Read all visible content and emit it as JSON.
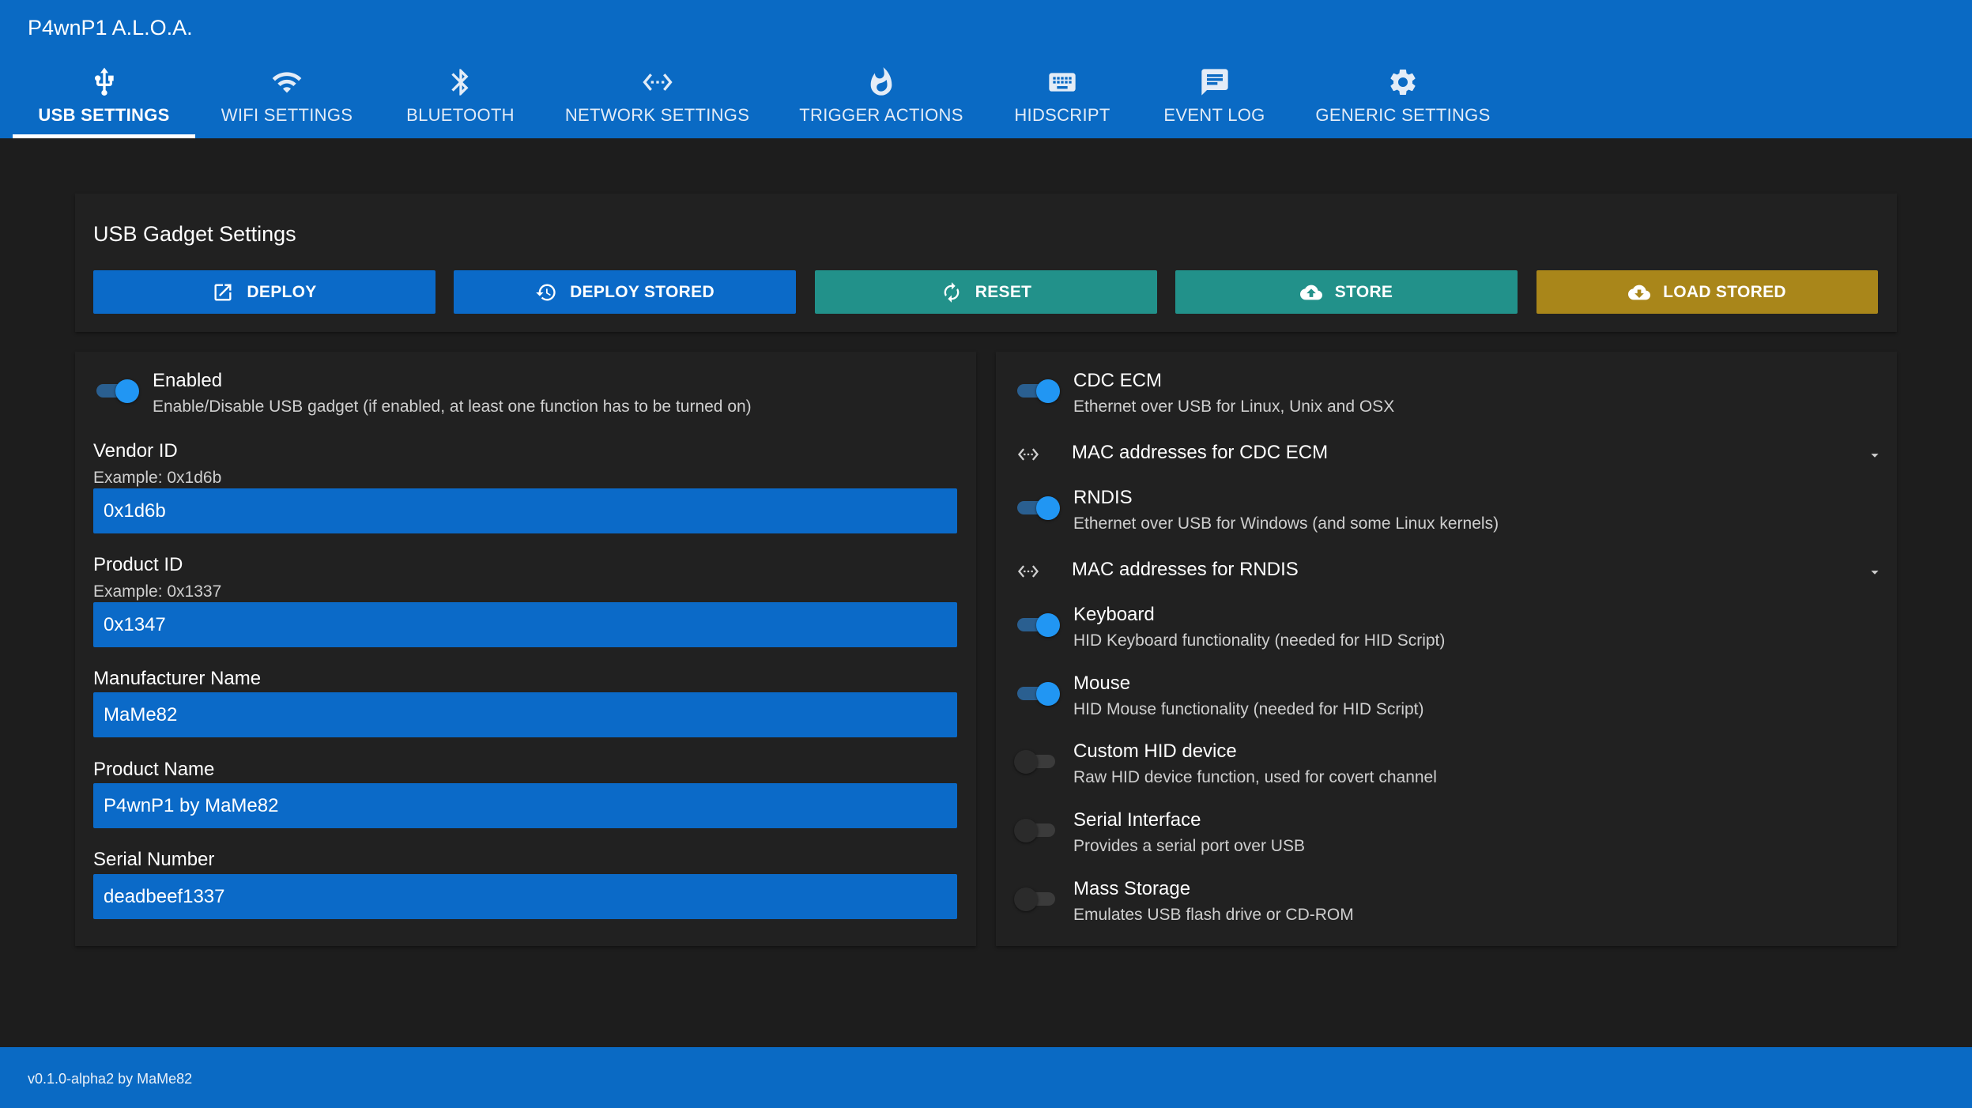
{
  "app": {
    "title": "P4wnP1 A.L.O.A."
  },
  "tabs": [
    {
      "label": "USB SETTINGS",
      "icon": "usb-icon",
      "active": true
    },
    {
      "label": "WIFI SETTINGS",
      "icon": "wifi-icon"
    },
    {
      "label": "BLUETOOTH",
      "icon": "bluetooth-icon"
    },
    {
      "label": "NETWORK SETTINGS",
      "icon": "code-arrows-icon"
    },
    {
      "label": "TRIGGER ACTIONS",
      "icon": "fire-icon"
    },
    {
      "label": "HIDSCRIPT",
      "icon": "keyboard-icon"
    },
    {
      "label": "EVENT LOG",
      "icon": "message-icon"
    },
    {
      "label": "GENERIC SETTINGS",
      "icon": "gear-icon"
    }
  ],
  "gadget": {
    "title": "USB Gadget Settings",
    "buttons": {
      "deploy": "DEPLOY",
      "deploy_stored": "DEPLOY STORED",
      "reset": "RESET",
      "store": "STORE",
      "load_stored": "LOAD STORED"
    }
  },
  "left": {
    "enabled": {
      "title": "Enabled",
      "sub": "Enable/Disable USB gadget (if enabled, at least one function has to be turned on)",
      "on": true
    },
    "vendor": {
      "label": "Vendor ID",
      "hint": "Example: 0x1d6b",
      "value": "0x1d6b"
    },
    "product": {
      "label": "Product ID",
      "hint": "Example: 0x1337",
      "value": "0x1347"
    },
    "manufacturer": {
      "label": "Manufacturer Name",
      "value": "MaMe82"
    },
    "product_name": {
      "label": "Product Name",
      "value": "P4wnP1 by MaMe82"
    },
    "serial": {
      "label": "Serial Number",
      "value": "deadbeef1337"
    }
  },
  "right": {
    "cdc_ecm": {
      "title": "CDC ECM",
      "sub": "Ethernet over USB for Linux, Unix and OSX",
      "on": true
    },
    "mac_cdc": {
      "label": "MAC addresses for CDC ECM"
    },
    "rndis": {
      "title": "RNDIS",
      "sub": "Ethernet over USB for Windows (and some Linux kernels)",
      "on": true
    },
    "mac_rndis": {
      "label": "MAC addresses for RNDIS"
    },
    "keyboard": {
      "title": "Keyboard",
      "sub": "HID Keyboard functionality (needed for HID Script)",
      "on": true
    },
    "mouse": {
      "title": "Mouse",
      "sub": "HID Mouse functionality (needed for HID Script)",
      "on": true
    },
    "custom_hid": {
      "title": "Custom HID device",
      "sub": "Raw HID device function, used for covert channel",
      "on": false
    },
    "serial": {
      "title": "Serial Interface",
      "sub": "Provides a serial port over USB",
      "on": false
    },
    "mass_storage": {
      "title": "Mass Storage",
      "sub": "Emulates USB flash drive or CD-ROM",
      "on": false
    }
  },
  "footer": {
    "text": "v0.1.0-alpha2 by MaMe82"
  },
  "colors": {
    "primary": "#0a6ac4",
    "teal": "#22918a",
    "gold": "#a9861a",
    "background": "#1d1d1d",
    "card": "#212121",
    "toggle_on": "#2196f3"
  }
}
